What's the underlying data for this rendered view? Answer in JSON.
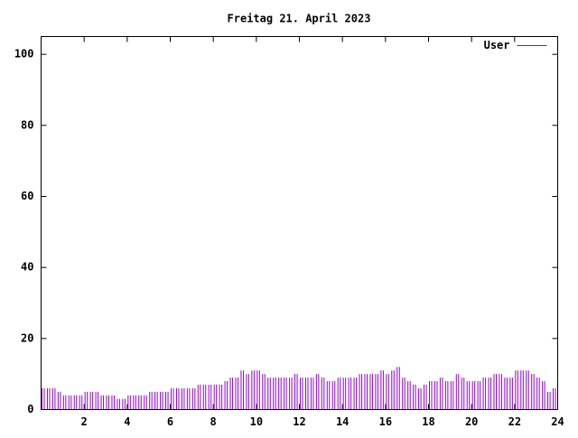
{
  "chart_data": {
    "type": "impulse",
    "title": "Freitag 21. April 2023",
    "x": [
      0,
      0.25,
      0.5,
      0.75,
      1,
      1.25,
      1.5,
      1.75,
      2,
      2.25,
      2.5,
      2.75,
      3,
      3.25,
      3.5,
      3.75,
      4,
      4.25,
      4.5,
      4.75,
      5,
      5.25,
      5.5,
      5.75,
      6,
      6.25,
      6.5,
      6.75,
      7,
      7.25,
      7.5,
      7.75,
      8,
      8.25,
      8.5,
      8.75,
      9,
      9.25,
      9.5,
      9.75,
      10,
      10.25,
      10.5,
      10.75,
      11,
      11.25,
      11.5,
      11.75,
      12,
      12.25,
      12.5,
      12.75,
      13,
      13.25,
      13.5,
      13.75,
      14,
      14.25,
      14.5,
      14.75,
      15,
      15.25,
      15.5,
      15.75,
      16,
      16.25,
      16.5,
      16.75,
      17,
      17.25,
      17.5,
      17.75,
      18,
      18.25,
      18.5,
      18.75,
      19,
      19.25,
      19.5,
      19.75,
      20,
      20.25,
      20.5,
      20.75,
      21,
      21.25,
      21.5,
      21.75,
      22,
      22.25,
      22.5,
      22.75,
      23,
      23.25,
      23.5,
      23.75
    ],
    "series": [
      {
        "name": "User",
        "color": "#9400d3",
        "values": [
          6,
          6,
          6,
          5,
          4,
          4,
          4,
          4,
          5,
          5,
          5,
          4,
          4,
          4,
          3,
          3,
          4,
          4,
          4,
          4,
          5,
          5,
          5,
          5,
          6,
          6,
          6,
          6,
          6,
          7,
          7,
          7,
          7,
          7,
          8,
          9,
          9,
          11,
          10,
          11,
          11,
          10,
          9,
          9,
          9,
          9,
          9,
          10,
          9,
          9,
          9,
          10,
          9,
          8,
          8,
          9,
          9,
          9,
          9,
          10,
          10,
          10,
          10,
          11,
          10,
          11,
          12,
          9,
          8,
          7,
          6,
          7,
          8,
          8,
          9,
          8,
          8,
          10,
          9,
          8,
          8,
          8,
          9,
          9,
          10,
          10,
          9,
          9,
          11,
          11,
          11,
          10,
          9,
          8,
          5,
          6
        ]
      }
    ],
    "xlim": [
      0,
      24
    ],
    "xticks": [
      2,
      4,
      6,
      8,
      10,
      12,
      14,
      16,
      18,
      20,
      22,
      24
    ],
    "ylim": [
      0,
      105
    ],
    "yticks": [
      0,
      20,
      40,
      60,
      80,
      100
    ],
    "legend": "upper right"
  }
}
